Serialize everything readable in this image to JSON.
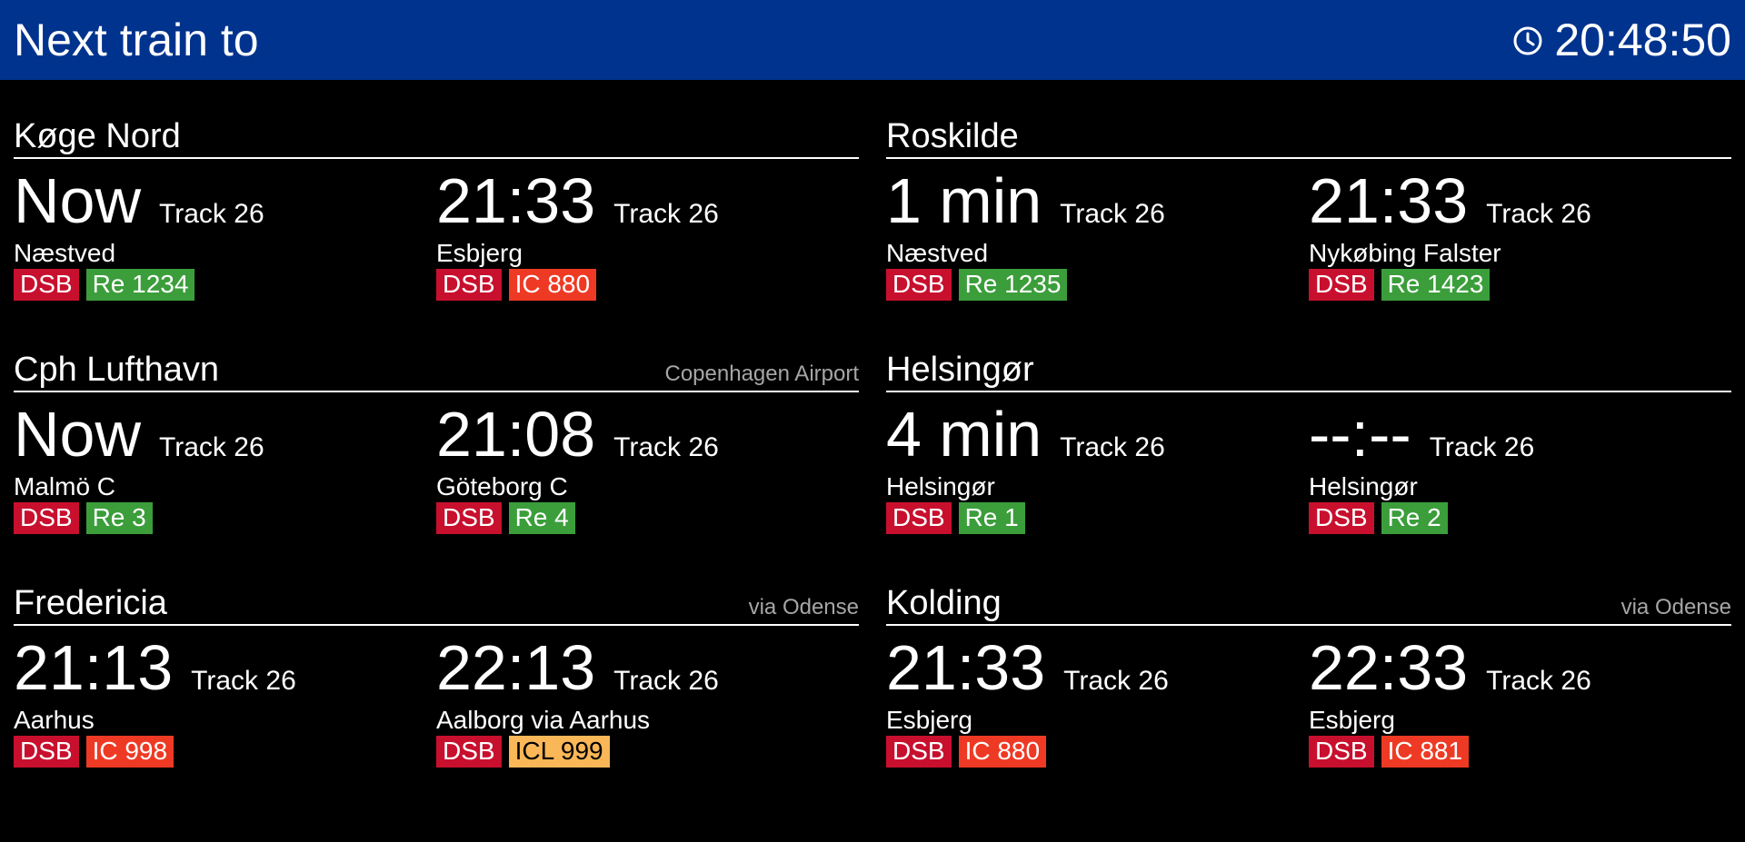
{
  "header": {
    "title": "Next train to",
    "time": "20:48:50",
    "clock_icon": "clock-icon"
  },
  "colors": {
    "header_bg": "#00338d",
    "operator": "#c8102e",
    "regional": "#3b9e3b",
    "intercity": "#ee3a24",
    "intercity_lyn": "#f9b757"
  },
  "sections": [
    {
      "destination": "Køge Nord",
      "note": "",
      "departures": [
        {
          "time": "Now",
          "track": "Track 26",
          "destination": "Næstved",
          "operator": "DSB",
          "train": "Re 1234",
          "train_type": "re"
        },
        {
          "time": "21:33",
          "track": "Track 26",
          "destination": "Esbjerg",
          "operator": "DSB",
          "train": "IC 880",
          "train_type": "ic"
        }
      ]
    },
    {
      "destination": "Roskilde",
      "note": "",
      "departures": [
        {
          "time": "1 min",
          "track": "Track 26",
          "destination": "Næstved",
          "operator": "DSB",
          "train": "Re 1235",
          "train_type": "re"
        },
        {
          "time": "21:33",
          "track": "Track 26",
          "destination": "Nykøbing Falster",
          "operator": "DSB",
          "train": "Re 1423",
          "train_type": "re"
        }
      ]
    },
    {
      "destination": "Cph Lufthavn",
      "note": "Copenhagen Airport",
      "departures": [
        {
          "time": "Now",
          "track": "Track 26",
          "destination": "Malmö C",
          "operator": "DSB",
          "train": "Re 3",
          "train_type": "re"
        },
        {
          "time": "21:08",
          "track": "Track 26",
          "destination": "Göteborg C",
          "operator": "DSB",
          "train": "Re 4",
          "train_type": "re"
        }
      ]
    },
    {
      "destination": "Helsingør",
      "note": "",
      "departures": [
        {
          "time": "4 min",
          "track": "Track 26",
          "destination": "Helsingør",
          "operator": "DSB",
          "train": "Re 1",
          "train_type": "re"
        },
        {
          "time": "--:--",
          "track": "Track 26",
          "destination": "Helsingør",
          "operator": "DSB",
          "train": "Re 2",
          "train_type": "re"
        }
      ]
    },
    {
      "destination": "Fredericia",
      "note": "via Odense",
      "departures": [
        {
          "time": "21:13",
          "track": "Track 26",
          "destination": "Aarhus",
          "operator": "DSB",
          "train": "IC 998",
          "train_type": "ic"
        },
        {
          "time": "22:13",
          "track": "Track 26",
          "destination": "Aalborg via Aarhus",
          "operator": "DSB",
          "train": "ICL 999",
          "train_type": "icl"
        }
      ]
    },
    {
      "destination": "Kolding",
      "note": "via Odense",
      "departures": [
        {
          "time": "21:33",
          "track": "Track 26",
          "destination": "Esbjerg",
          "operator": "DSB",
          "train": "IC 880",
          "train_type": "ic"
        },
        {
          "time": "22:33",
          "track": "Track 26",
          "destination": "Esbjerg",
          "operator": "DSB",
          "train": "IC 881",
          "train_type": "ic"
        }
      ]
    }
  ]
}
